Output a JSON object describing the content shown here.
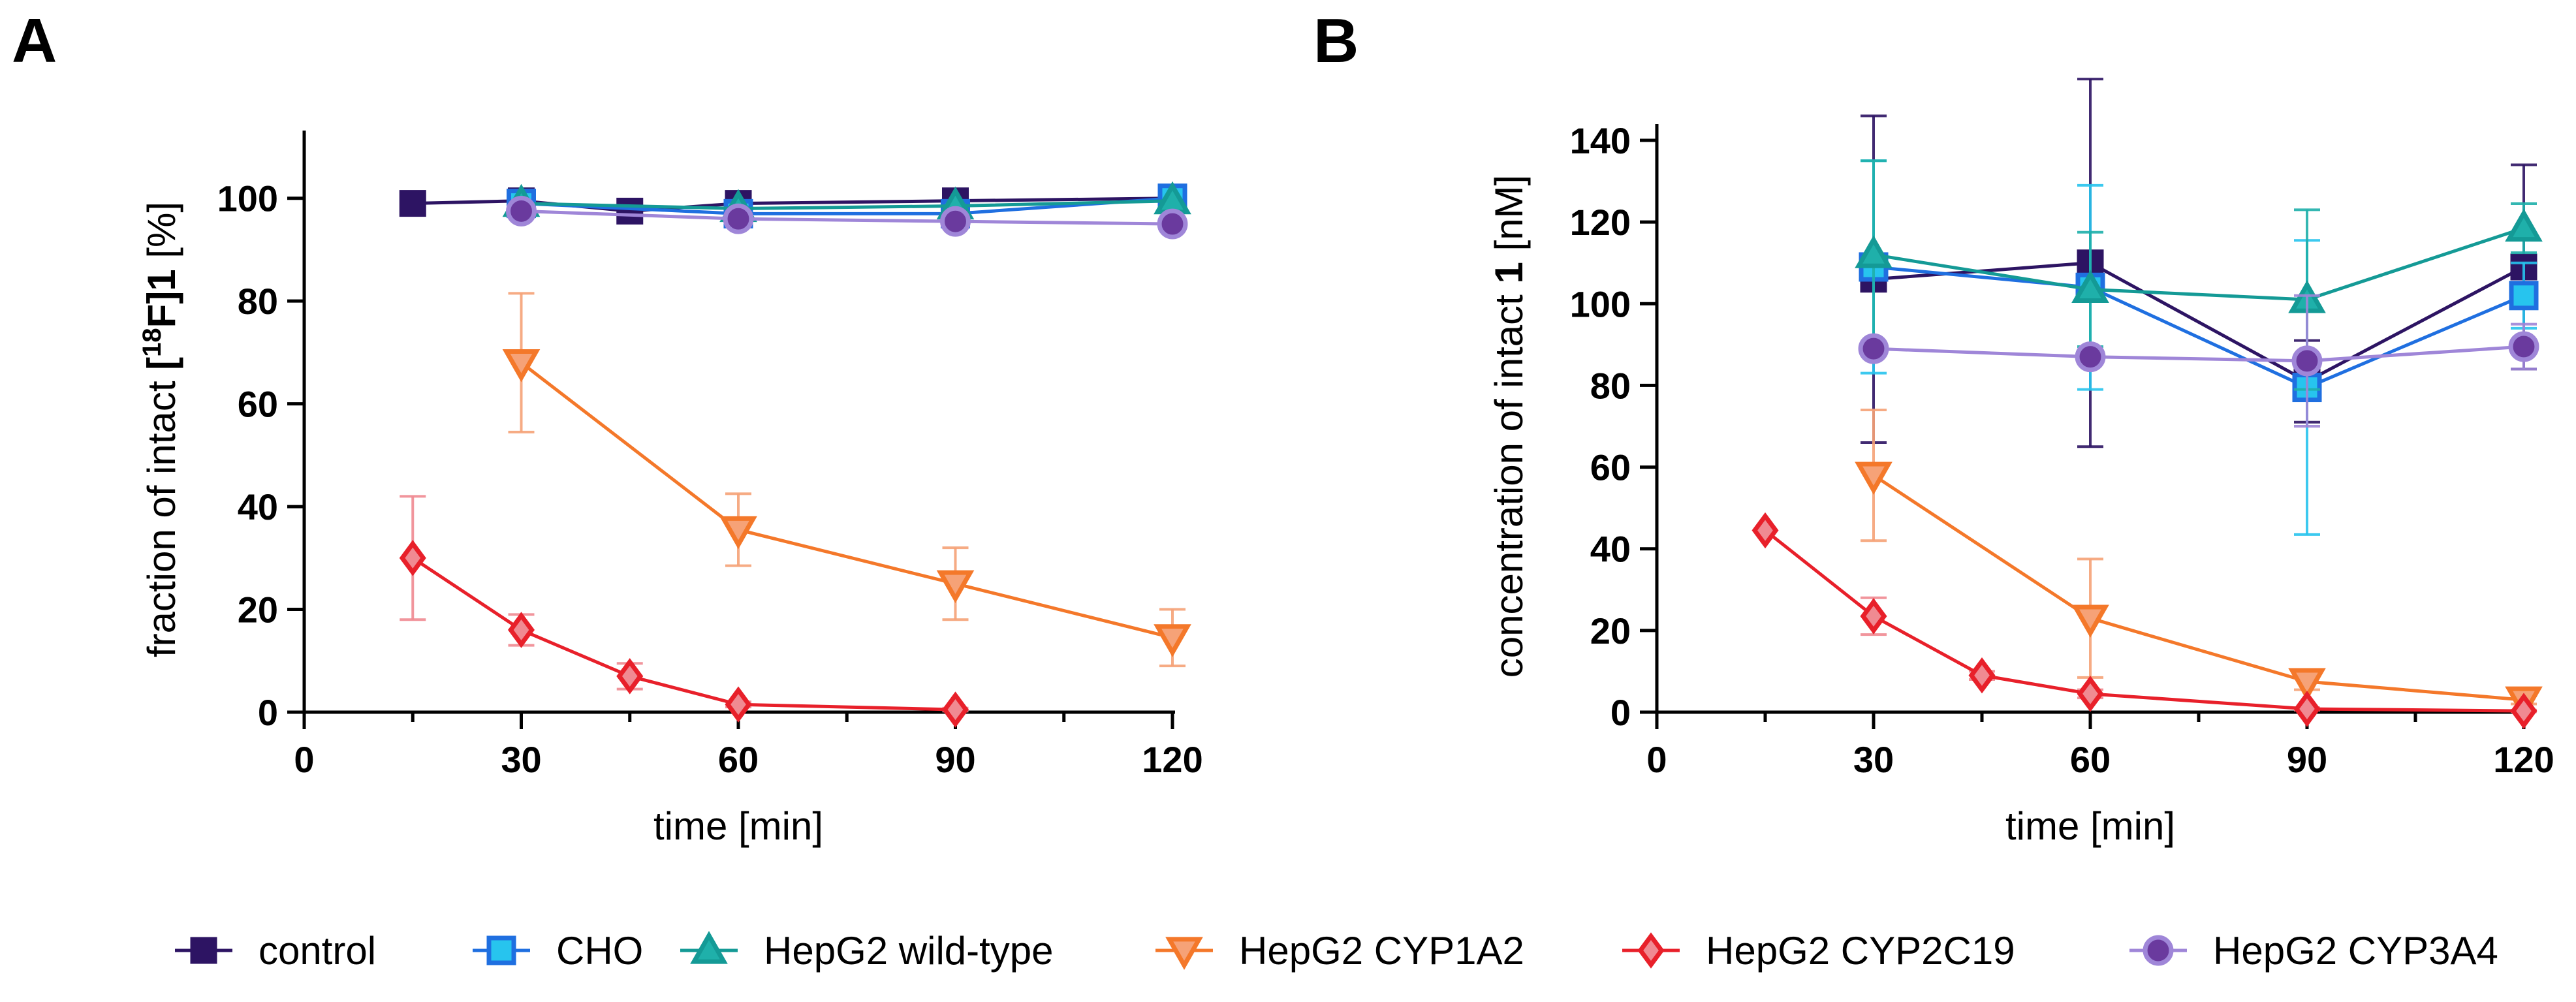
{
  "figure": {
    "panels": [
      "A",
      "B"
    ],
    "legend": [
      {
        "label": "control",
        "color": "#2d1463",
        "marker": "square"
      },
      {
        "label": "CHO",
        "color": "#1f6fe0",
        "fill": "#27c4ee",
        "marker": "square"
      },
      {
        "label": "HepG2 wild-type",
        "color": "#149a96",
        "fill": "#1fb0aa",
        "marker": "triangle-up"
      },
      {
        "label": "HepG2 CYP1A2",
        "color": "#f4782a",
        "fill": "#f6a277",
        "marker": "triangle-down"
      },
      {
        "label": "HepG2 CYP2C19",
        "color": "#e8202a",
        "fill": "#f08a92",
        "marker": "diamond"
      },
      {
        "label": "HepG2 CYP3A4",
        "color": "#9f86d8",
        "fill": "#6a3a9e",
        "marker": "circle"
      }
    ]
  },
  "chart_data": [
    {
      "panel": "A",
      "type": "line",
      "xlabel": "time [min]",
      "ylabel_prefix": "fraction of intact ",
      "ylabel_bold": "[",
      "ylabel_sup": "18",
      "ylabel_bold2": "F]1",
      "ylabel_suffix": " [%]",
      "xlim": [
        0,
        120
      ],
      "ylim": [
        0,
        110
      ],
      "xticks": [
        0,
        30,
        60,
        90,
        120
      ],
      "xminor": [
        15,
        45,
        75,
        105
      ],
      "yticks": [
        0,
        20,
        40,
        60,
        80,
        100
      ],
      "series": [
        {
          "name": "control",
          "x": [
            15,
            30,
            45,
            60,
            90,
            120
          ],
          "y": [
            99,
            99.5,
            97.5,
            99,
            99.5,
            100
          ],
          "err": [
            0,
            0,
            0,
            0,
            0,
            0
          ]
        },
        {
          "name": "CHO",
          "x": [
            30,
            60,
            90,
            120
          ],
          "y": [
            99,
            97,
            97,
            100
          ],
          "err": [
            0,
            0,
            0,
            0
          ]
        },
        {
          "name": "HepG2 wild-type",
          "x": [
            30,
            60,
            90,
            120
          ],
          "y": [
            99,
            98,
            98.5,
            99.5
          ],
          "err": [
            0,
            0,
            0,
            0
          ]
        },
        {
          "name": "HepG2 CYP1A2",
          "x": [
            30,
            60,
            90,
            120
          ],
          "y": [
            68,
            35.5,
            25,
            14.5
          ],
          "err": [
            13.5,
            7,
            7,
            5.5
          ]
        },
        {
          "name": "HepG2 CYP2C19",
          "x": [
            15,
            30,
            45,
            60,
            90
          ],
          "y": [
            30,
            16,
            7,
            1.5,
            0.5
          ],
          "err": [
            12,
            3,
            2.5,
            0.5,
            0.3
          ]
        },
        {
          "name": "HepG2 CYP3A4",
          "x": [
            30,
            60,
            90,
            120
          ],
          "y": [
            97.5,
            96,
            95.5,
            95
          ],
          "err": [
            0,
            0,
            0,
            0
          ]
        }
      ]
    },
    {
      "panel": "B",
      "type": "line",
      "xlabel": "time [min]",
      "ylabel_prefix": "concentration of intact ",
      "ylabel_bold": "1",
      "ylabel_suffix": " [nM]",
      "xlim": [
        0,
        120
      ],
      "ylim": [
        0,
        140
      ],
      "xticks": [
        0,
        30,
        60,
        90,
        120
      ],
      "xminor": [
        15,
        45,
        75,
        105
      ],
      "yticks": [
        0,
        20,
        40,
        60,
        80,
        100,
        120,
        140
      ],
      "series": [
        {
          "name": "control",
          "x": [
            30,
            60,
            90,
            120
          ],
          "y": [
            106,
            110,
            81,
            109
          ],
          "err": [
            40,
            45,
            10,
            25
          ]
        },
        {
          "name": "CHO",
          "x": [
            30,
            60,
            90,
            120
          ],
          "y": [
            109,
            104,
            79.5,
            102
          ],
          "err": [
            26,
            25,
            36,
            8
          ]
        },
        {
          "name": "HepG2 wild-type",
          "x": [
            30,
            60,
            90,
            120
          ],
          "y": [
            112,
            103.5,
            101,
            118.5
          ],
          "err": [
            23,
            14,
            22,
            6
          ]
        },
        {
          "name": "HepG2 CYP1A2",
          "x": [
            30,
            60,
            90,
            120
          ],
          "y": [
            58,
            23,
            7.5,
            3
          ],
          "err": [
            16,
            14.5,
            2,
            1
          ]
        },
        {
          "name": "HepG2 CYP2C19",
          "x": [
            15,
            30,
            45,
            60,
            90,
            120
          ],
          "y": [
            44.5,
            23.5,
            9,
            4.5,
            0.8,
            0.3
          ],
          "err": [
            0,
            4.5,
            1,
            1,
            0.3,
            0.2
          ]
        },
        {
          "name": "HepG2 CYP3A4",
          "x": [
            30,
            60,
            90,
            120
          ],
          "y": [
            89,
            87,
            86,
            89.5
          ],
          "err": [
            0,
            0,
            16,
            5.5
          ]
        }
      ]
    }
  ]
}
